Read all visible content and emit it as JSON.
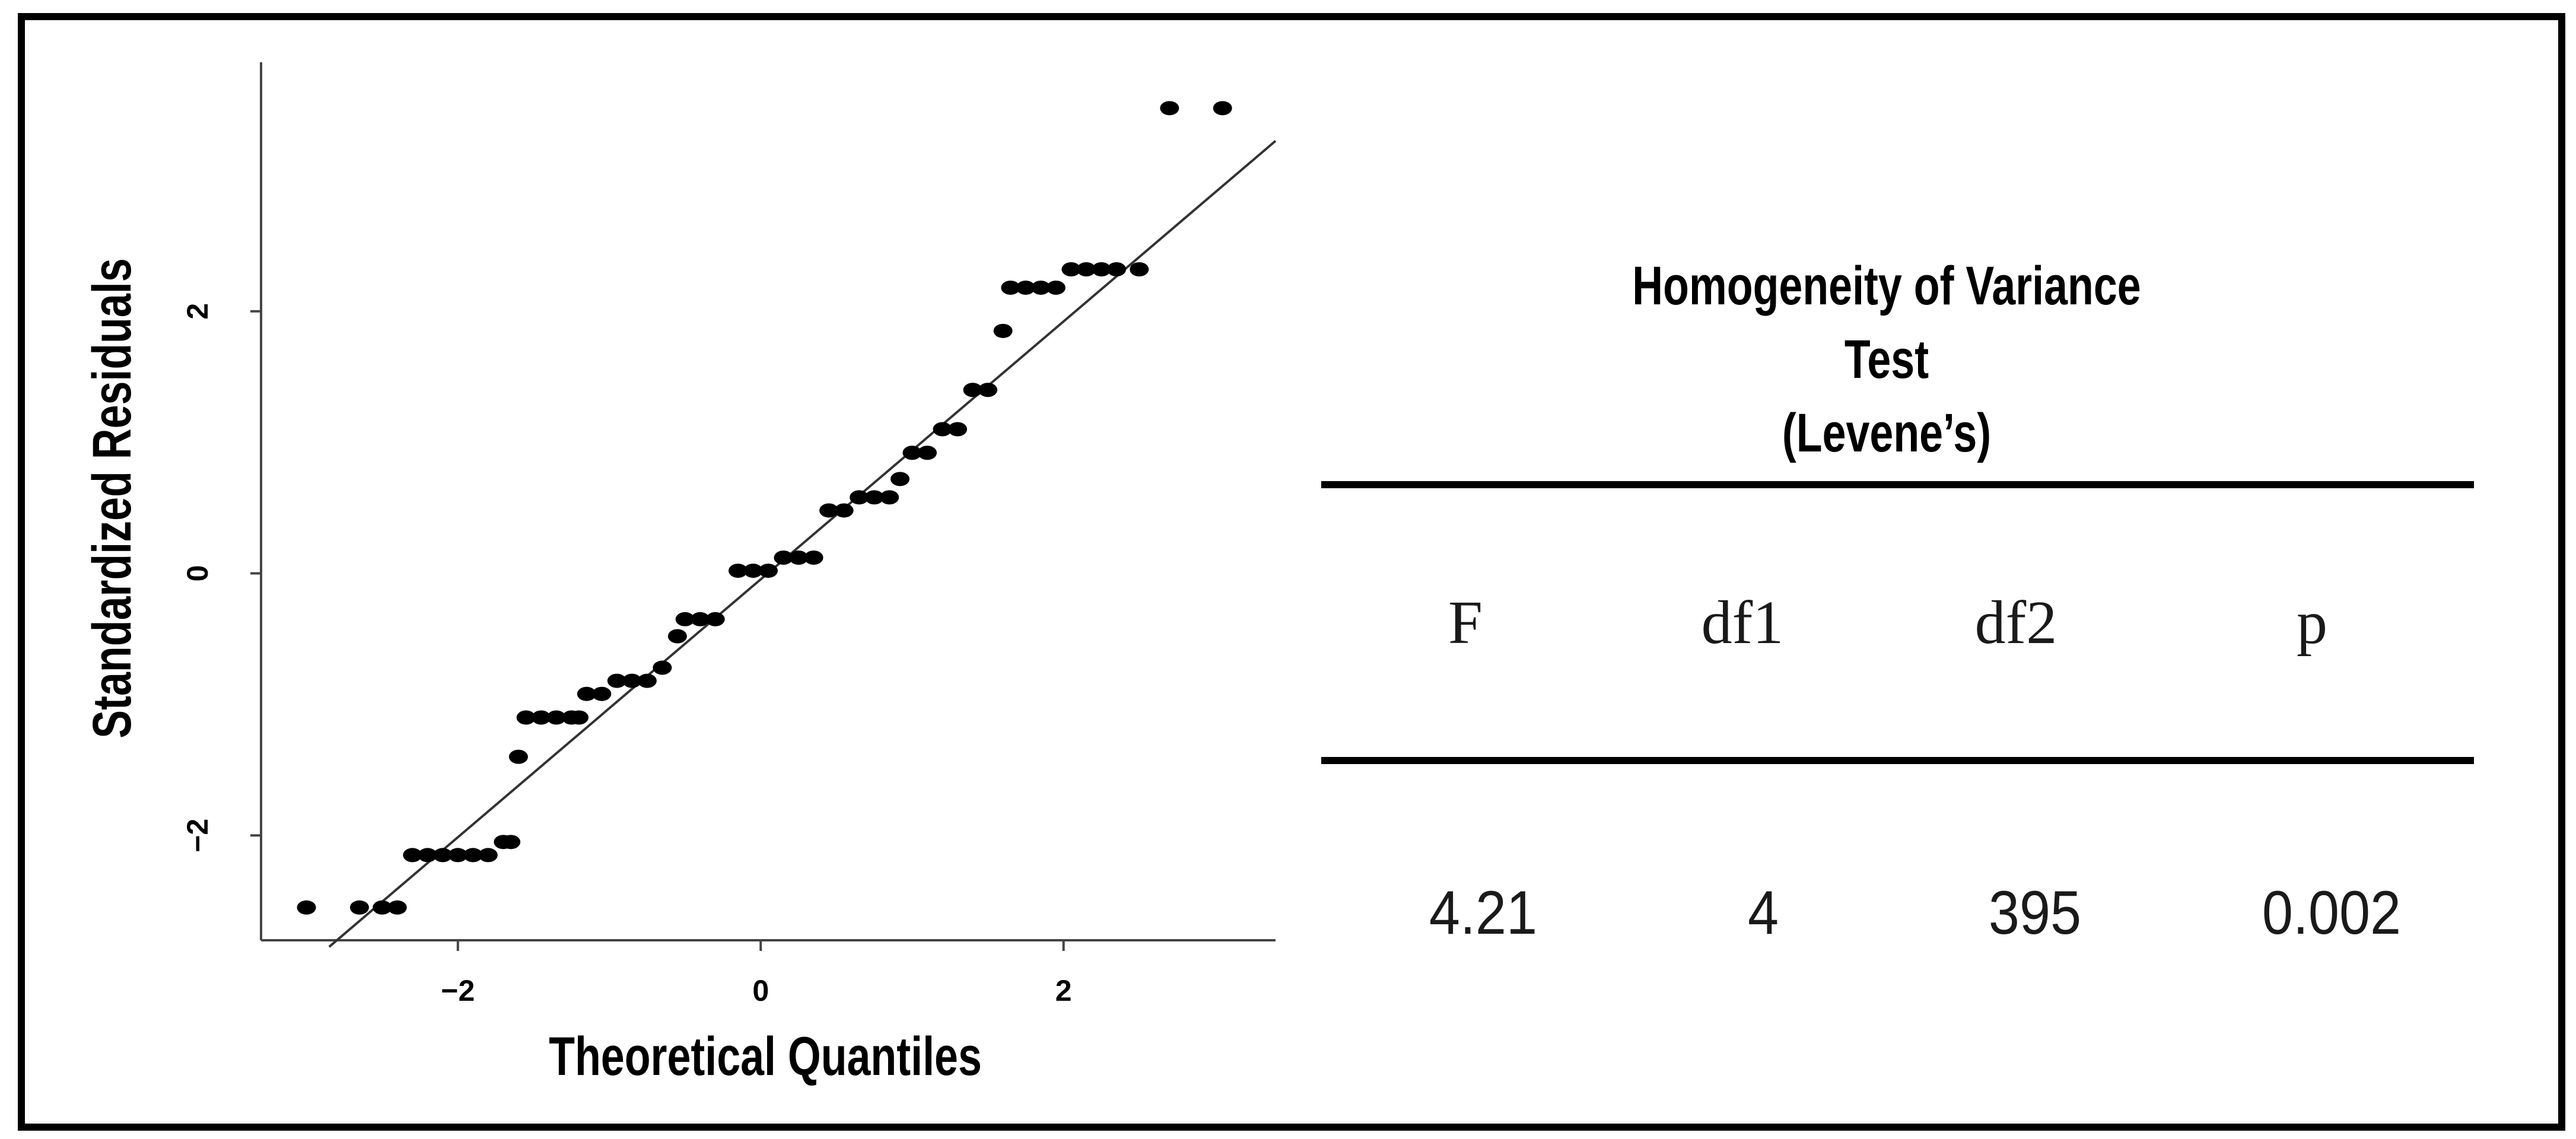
{
  "chart_data": {
    "type": "scatter",
    "subtype": "qq-plot",
    "xlabel": "Theoretical Quantiles",
    "ylabel": "Standardized Residuals",
    "xlim": [
      -3.3,
      3.4
    ],
    "ylim": [
      -2.8,
      3.9
    ],
    "x_ticks": [
      -2,
      0,
      2
    ],
    "y_ticks": [
      -2,
      0,
      2
    ],
    "x_tick_labels": [
      "−2",
      "0",
      "2"
    ],
    "y_tick_labels": [
      "−2",
      "0",
      "2"
    ],
    "grid": false,
    "reference_line": {
      "x": [
        -2.85,
        3.4
      ],
      "y": [
        -2.85,
        3.3
      ]
    },
    "points": [
      {
        "x": -3.0,
        "y": -2.55
      },
      {
        "x": -2.65,
        "y": -2.55
      },
      {
        "x": -2.5,
        "y": -2.55
      },
      {
        "x": -2.4,
        "y": -2.55
      },
      {
        "x": -2.3,
        "y": -2.15
      },
      {
        "x": -2.2,
        "y": -2.15
      },
      {
        "x": -2.1,
        "y": -2.15
      },
      {
        "x": -2.0,
        "y": -2.15
      },
      {
        "x": -1.9,
        "y": -2.15
      },
      {
        "x": -1.8,
        "y": -2.15
      },
      {
        "x": -1.7,
        "y": -2.05
      },
      {
        "x": -1.65,
        "y": -2.05
      },
      {
        "x": -1.6,
        "y": -1.4
      },
      {
        "x": -1.55,
        "y": -1.1
      },
      {
        "x": -1.45,
        "y": -1.1
      },
      {
        "x": -1.35,
        "y": -1.1
      },
      {
        "x": -1.25,
        "y": -1.1
      },
      {
        "x": -1.2,
        "y": -1.1
      },
      {
        "x": -1.15,
        "y": -0.92
      },
      {
        "x": -1.05,
        "y": -0.92
      },
      {
        "x": -0.95,
        "y": -0.82
      },
      {
        "x": -0.85,
        "y": -0.82
      },
      {
        "x": -0.75,
        "y": -0.82
      },
      {
        "x": -0.65,
        "y": -0.72
      },
      {
        "x": -0.55,
        "y": -0.48
      },
      {
        "x": -0.5,
        "y": -0.35
      },
      {
        "x": -0.4,
        "y": -0.35
      },
      {
        "x": -0.3,
        "y": -0.35
      },
      {
        "x": -0.15,
        "y": 0.02
      },
      {
        "x": -0.05,
        "y": 0.02
      },
      {
        "x": 0.05,
        "y": 0.02
      },
      {
        "x": 0.15,
        "y": 0.12
      },
      {
        "x": 0.25,
        "y": 0.12
      },
      {
        "x": 0.35,
        "y": 0.12
      },
      {
        "x": 0.45,
        "y": 0.48
      },
      {
        "x": 0.55,
        "y": 0.48
      },
      {
        "x": 0.65,
        "y": 0.58
      },
      {
        "x": 0.75,
        "y": 0.58
      },
      {
        "x": 0.85,
        "y": 0.58
      },
      {
        "x": 0.92,
        "y": 0.72
      },
      {
        "x": 1.0,
        "y": 0.92
      },
      {
        "x": 1.1,
        "y": 0.92
      },
      {
        "x": 1.2,
        "y": 1.1
      },
      {
        "x": 1.3,
        "y": 1.1
      },
      {
        "x": 1.4,
        "y": 1.4
      },
      {
        "x": 1.5,
        "y": 1.4
      },
      {
        "x": 1.6,
        "y": 1.85
      },
      {
        "x": 1.65,
        "y": 2.18
      },
      {
        "x": 1.75,
        "y": 2.18
      },
      {
        "x": 1.85,
        "y": 2.18
      },
      {
        "x": 1.95,
        "y": 2.18
      },
      {
        "x": 2.05,
        "y": 2.32
      },
      {
        "x": 2.15,
        "y": 2.32
      },
      {
        "x": 2.25,
        "y": 2.32
      },
      {
        "x": 2.35,
        "y": 2.32
      },
      {
        "x": 2.5,
        "y": 2.32
      },
      {
        "x": 2.7,
        "y": 3.55
      },
      {
        "x": 3.05,
        "y": 3.55
      }
    ]
  },
  "table": {
    "title_line1": "Homogeneity of Variance Test",
    "title_line2": "(Levene’s)",
    "headers": [
      "F",
      "df1",
      "df2",
      "p"
    ],
    "values": [
      "4.21",
      "4",
      "395",
      "0.002"
    ]
  }
}
